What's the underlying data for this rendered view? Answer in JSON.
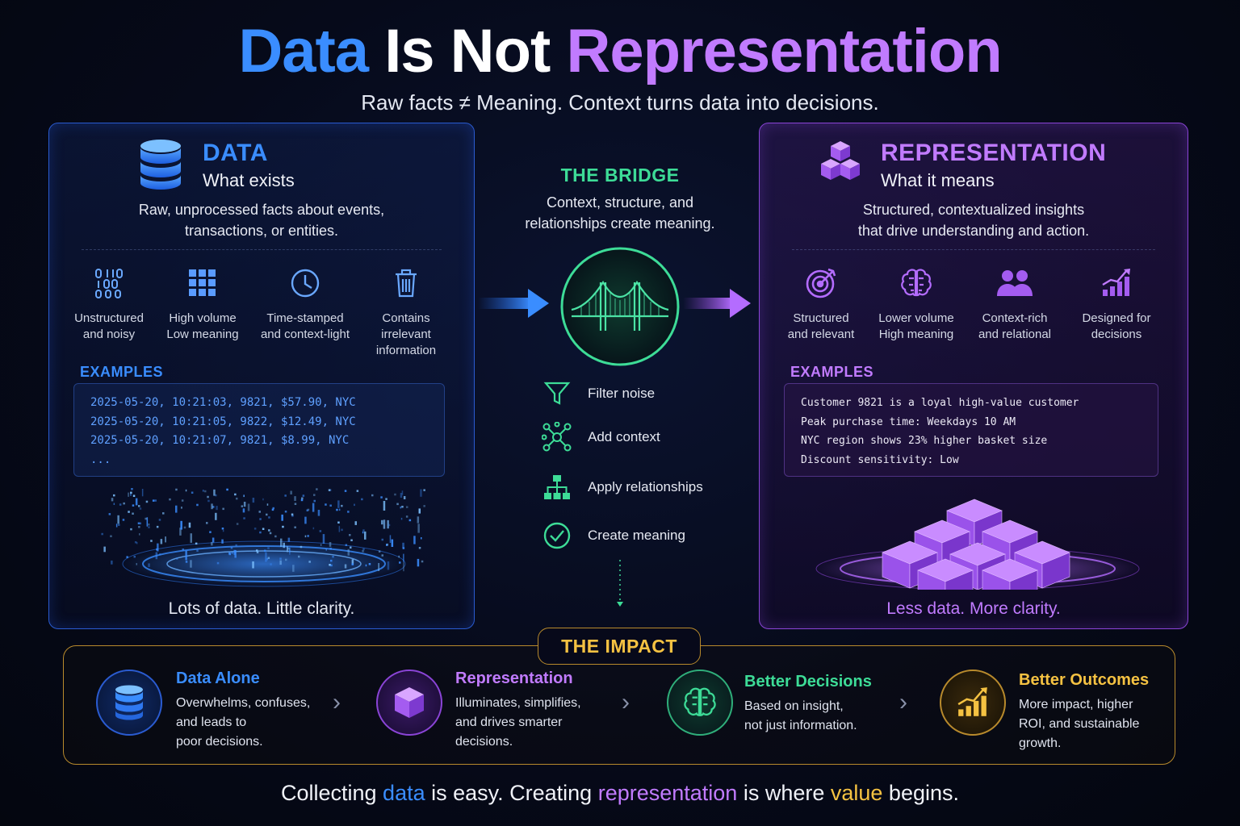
{
  "header": {
    "title_part1": "Data",
    "title_part2": "Is Not",
    "title_part3": "Representation",
    "subtitle": "Raw facts ≠ Meaning. Context turns data into decisions."
  },
  "colors": {
    "data_blue": "#3a8dff",
    "representation_purple": "#c17bff",
    "bridge_green": "#3ddc97",
    "impact_gold": "#f5c242"
  },
  "data_panel": {
    "title": "DATA",
    "subtitle": "What exists",
    "description_line1": "Raw, unprocessed facts about events,",
    "description_line2": "transactions, or entities.",
    "features": [
      {
        "icon": "binary-icon",
        "line1": "Unstructured",
        "line2": "and noisy",
        "line3": ""
      },
      {
        "icon": "grid-icon",
        "line1": "High volume",
        "line2": "Low meaning",
        "line3": ""
      },
      {
        "icon": "clock-icon",
        "line1": "Time-stamped",
        "line2": "and context-light",
        "line3": ""
      },
      {
        "icon": "trash-icon",
        "line1": "Contains",
        "line2": "irrelevant",
        "line3": "information"
      }
    ],
    "examples_label": "EXAMPLES",
    "examples": [
      "2025-05-20, 10:21:03, 9821, $57.90, NYC",
      "2025-05-20, 10:21:05, 9822, $12.49, NYC",
      "2025-05-20, 10:21:07, 9821, $8.99, NYC",
      "..."
    ],
    "footer": "Lots of data. Little clarity."
  },
  "bridge": {
    "title": "THE BRIDGE",
    "description_line1": "Context, structure, and",
    "description_line2": "relationships create meaning.",
    "steps": [
      {
        "icon": "funnel-icon",
        "label": "Filter noise"
      },
      {
        "icon": "network-icon",
        "label": "Add context"
      },
      {
        "icon": "hierarchy-icon",
        "label": "Apply relationships"
      },
      {
        "icon": "check-circle-icon",
        "label": "Create meaning"
      }
    ]
  },
  "representation_panel": {
    "title": "REPRESENTATION",
    "subtitle": "What it means",
    "description_line1": "Structured, contextualized insights",
    "description_line2": "that drive understanding and action.",
    "features": [
      {
        "icon": "target-icon",
        "line1": "Structured",
        "line2": "and relevant"
      },
      {
        "icon": "brain-icon",
        "line1": "Lower volume",
        "line2": "High meaning"
      },
      {
        "icon": "people-icon",
        "line1": "Context-rich",
        "line2": "and relational"
      },
      {
        "icon": "growth-chart-icon",
        "line1": "Designed for",
        "line2": "decisions"
      }
    ],
    "examples_label": "EXAMPLES",
    "examples": [
      "Customer 9821 is a loyal high-value customer",
      "Peak purchase time: Weekdays 10 AM",
      "NYC region shows 23% higher basket size",
      "Discount sensitivity: Low"
    ],
    "footer": "Less data. More clarity."
  },
  "impact": {
    "title": "THE IMPACT",
    "items": [
      {
        "icon": "database-icon",
        "title": "Data Alone",
        "line1": "Overwhelms, confuses,",
        "line2": "and leads to",
        "line3": "poor decisions."
      },
      {
        "icon": "cube-icon",
        "title": "Representation",
        "line1": "Illuminates, simplifies,",
        "line2": "and drives smarter",
        "line3": "decisions."
      },
      {
        "icon": "brain-icon",
        "title": "Better Decisions",
        "line1": "Based on insight,",
        "line2": "not just information.",
        "line3": ""
      },
      {
        "icon": "growth-chart-icon",
        "title": "Better Outcomes",
        "line1": "More impact, higher",
        "line2": "ROI, and sustainable",
        "line3": "growth."
      }
    ]
  },
  "tagline": {
    "part1": "Collecting ",
    "word1": "data",
    "part2": " is easy. Creating ",
    "word2": "representation",
    "part3": " is where ",
    "word3": "value",
    "part4": " begins."
  }
}
